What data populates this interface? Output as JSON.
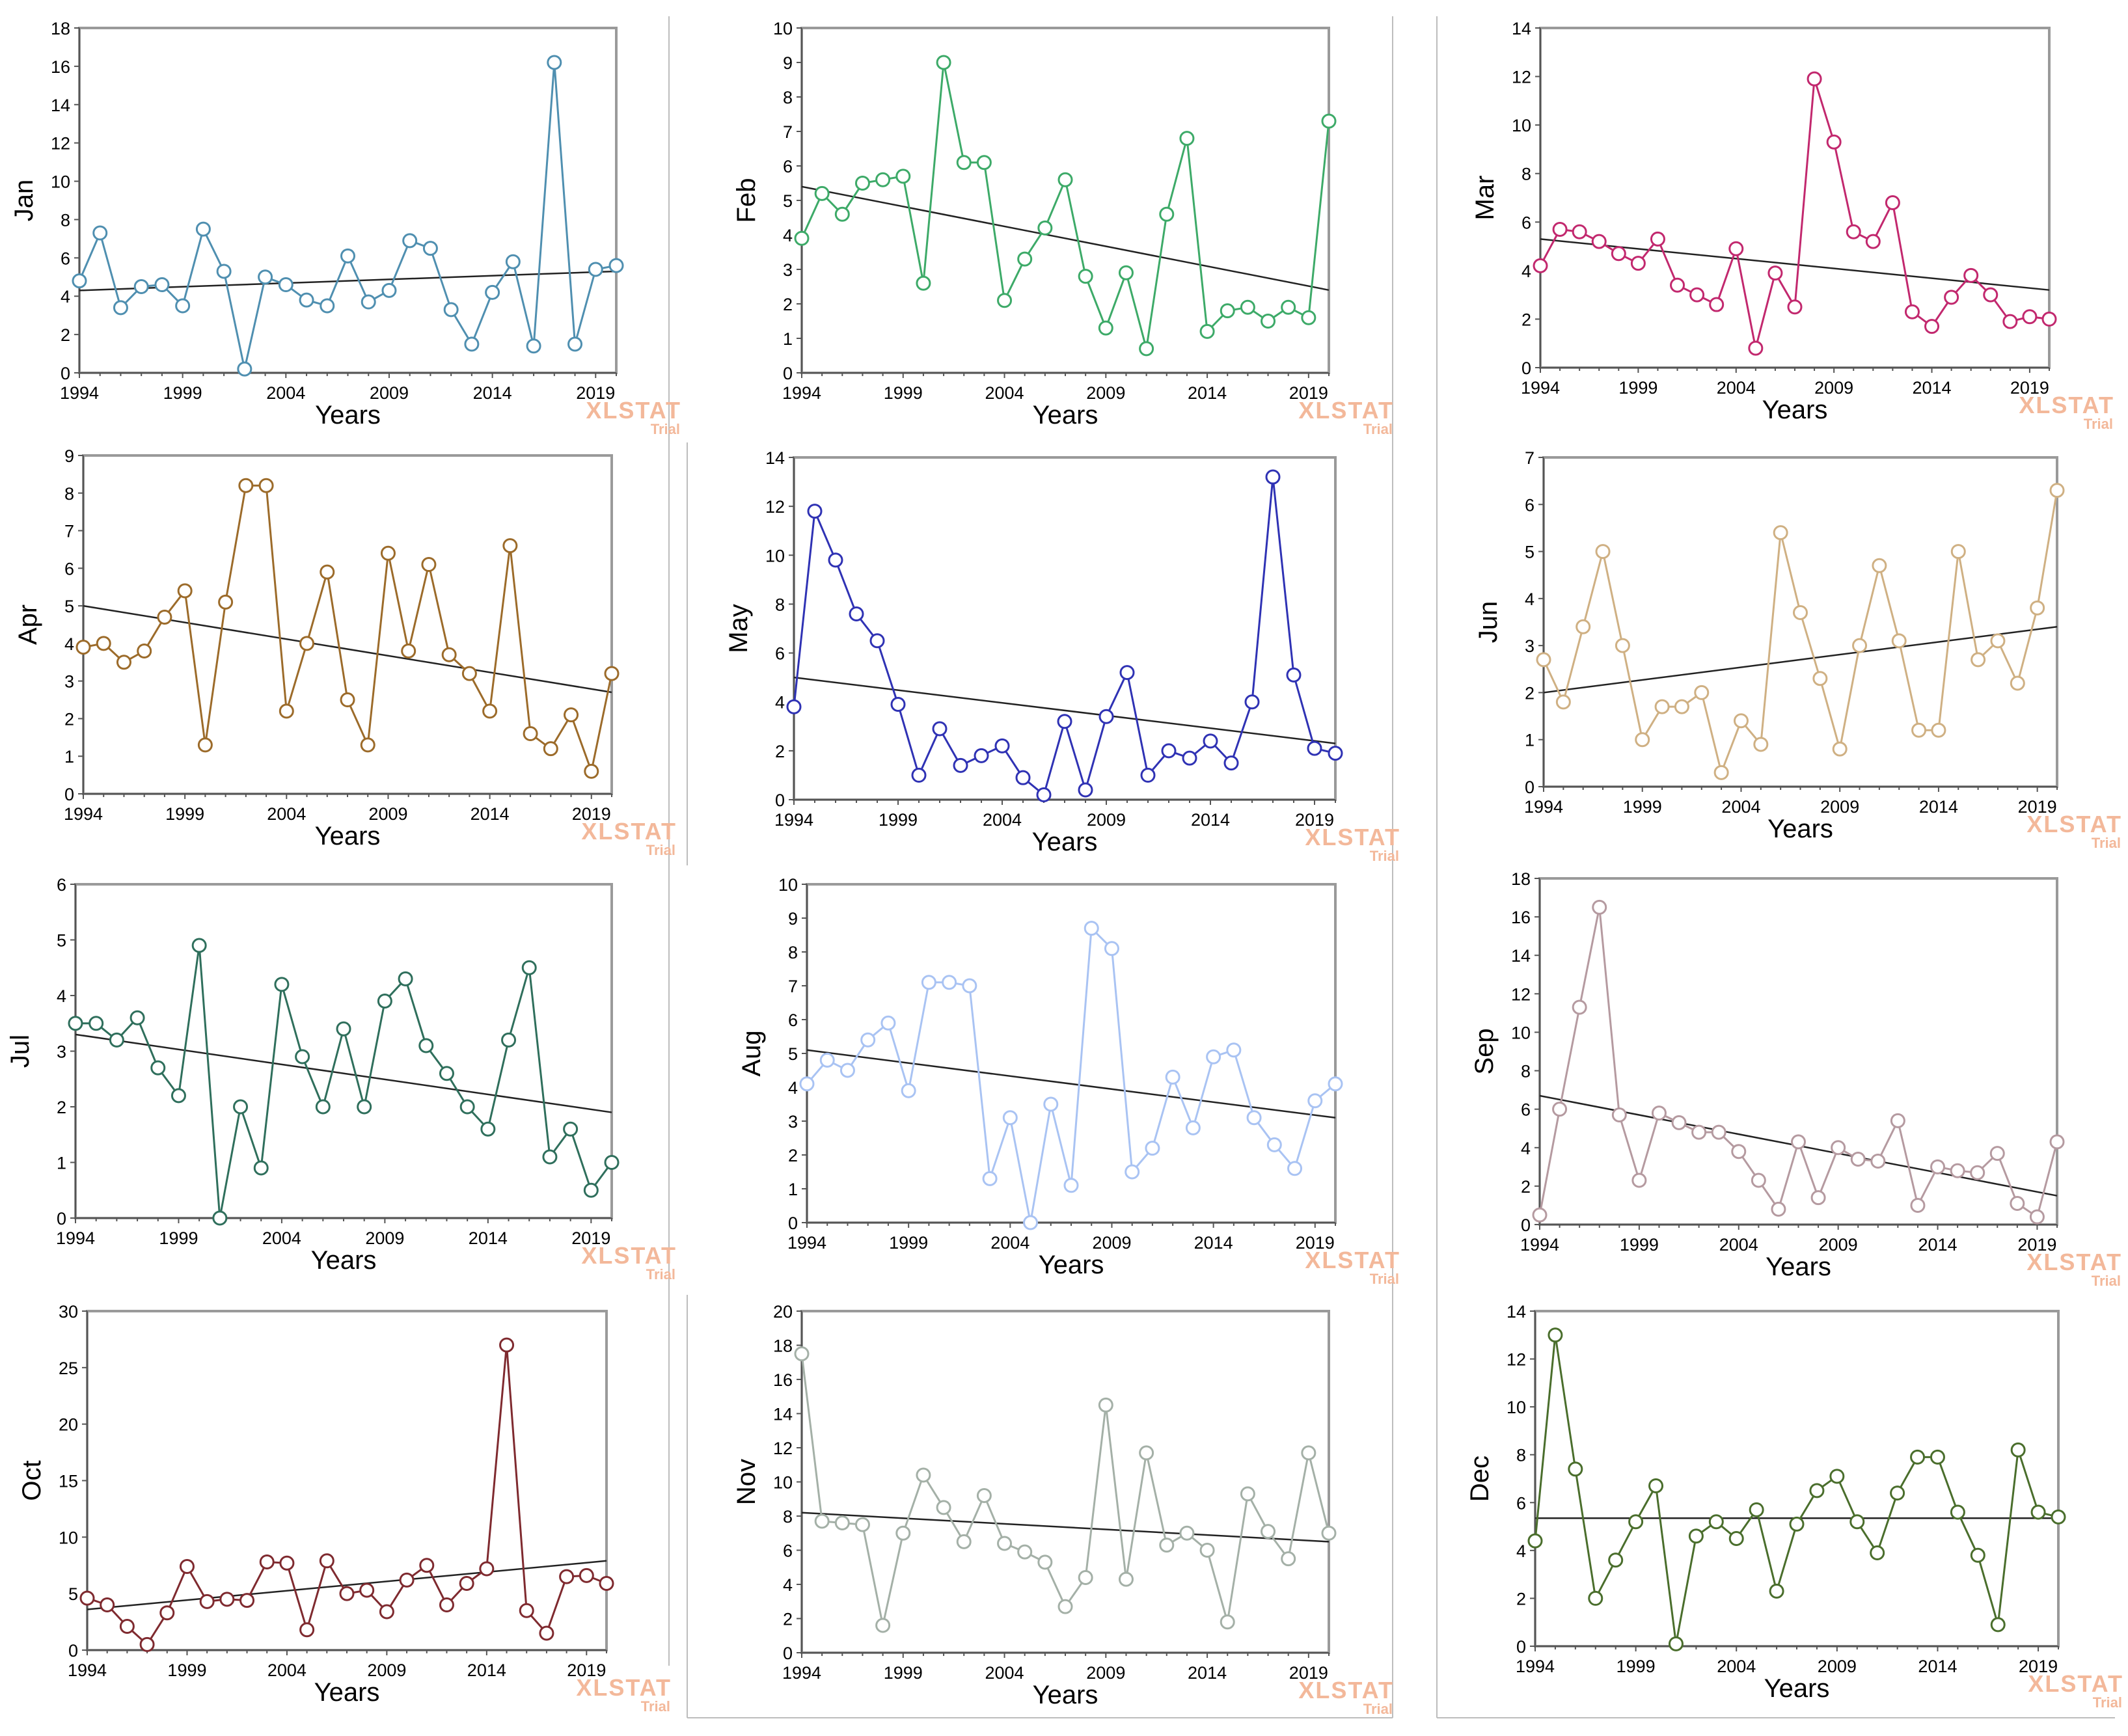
{
  "watermark": {
    "brand": "XLSTAT",
    "edition": "Trial"
  },
  "chart_data": [
    {
      "type": "line",
      "ylabel": "Jan",
      "xlabel": "Years",
      "ylim": [
        0,
        18
      ],
      "ystep": 2,
      "x_ticks": [
        "1994",
        "1999",
        "2004",
        "2009",
        "2014",
        "2019"
      ],
      "color": "#4f8fb0",
      "years": [
        1994,
        1995,
        1996,
        1997,
        1998,
        1999,
        2000,
        2001,
        2002,
        2003,
        2004,
        2005,
        2006,
        2007,
        2008,
        2009,
        2010,
        2011,
        2012,
        2013,
        2014,
        2015,
        2016,
        2017,
        2018,
        2019,
        2020
      ],
      "values": [
        4.8,
        7.3,
        3.4,
        4.5,
        4.6,
        3.5,
        7.5,
        5.3,
        0.2,
        5.0,
        4.6,
        3.8,
        3.5,
        6.1,
        3.7,
        4.3,
        6.9,
        6.5,
        3.3,
        1.5,
        4.2,
        5.8,
        1.4,
        16.2,
        1.5,
        5.4,
        5.6
      ],
      "trend": [
        4.3,
        5.3
      ]
    },
    {
      "type": "line",
      "ylabel": "Feb",
      "xlabel": "Years",
      "ylim": [
        0,
        10
      ],
      "ystep": 1,
      "x_ticks": [
        "1994",
        "1999",
        "2004",
        "2009",
        "2014",
        "2019"
      ],
      "color": "#3daa68",
      "years": [
        1994,
        1995,
        1996,
        1997,
        1998,
        1999,
        2000,
        2001,
        2002,
        2003,
        2004,
        2005,
        2006,
        2007,
        2008,
        2009,
        2010,
        2011,
        2012,
        2013,
        2014,
        2015,
        2016,
        2017,
        2018,
        2019,
        2020
      ],
      "values": [
        3.9,
        5.2,
        4.6,
        5.5,
        5.6,
        5.7,
        2.6,
        9.0,
        6.1,
        6.1,
        2.1,
        3.3,
        4.2,
        5.6,
        2.8,
        1.3,
        2.9,
        0.7,
        4.6,
        6.8,
        1.2,
        1.8,
        1.9,
        1.5,
        1.9,
        1.6,
        7.3
      ],
      "trend": [
        5.4,
        2.4
      ]
    },
    {
      "type": "line",
      "ylabel": "Mar",
      "xlabel": "Years",
      "ylim": [
        0,
        14
      ],
      "ystep": 2,
      "x_ticks": [
        "1994",
        "1999",
        "2004",
        "2009",
        "2014",
        "2019"
      ],
      "color": "#c2286e",
      "years": [
        1994,
        1995,
        1996,
        1997,
        1998,
        1999,
        2000,
        2001,
        2002,
        2003,
        2004,
        2005,
        2006,
        2007,
        2008,
        2009,
        2010,
        2011,
        2012,
        2013,
        2014,
        2015,
        2016,
        2017,
        2018,
        2019,
        2020
      ],
      "values": [
        4.2,
        5.7,
        5.6,
        5.2,
        4.7,
        4.3,
        5.3,
        3.4,
        3.0,
        2.6,
        4.9,
        0.8,
        3.9,
        2.5,
        11.9,
        9.3,
        5.6,
        5.2,
        6.8,
        2.3,
        1.7,
        2.9,
        3.8,
        3.0,
        1.9,
        2.1,
        2.0
      ],
      "trend": [
        5.3,
        3.2
      ]
    },
    {
      "type": "line",
      "ylabel": "Apr",
      "xlabel": "Years",
      "ylim": [
        0,
        9
      ],
      "ystep": 1,
      "x_ticks": [
        "1994",
        "1999",
        "2004",
        "2009",
        "2014",
        "2019"
      ],
      "color": "#9c6b2a",
      "years": [
        1994,
        1995,
        1996,
        1997,
        1998,
        1999,
        2000,
        2001,
        2002,
        2003,
        2004,
        2005,
        2006,
        2007,
        2008,
        2009,
        2010,
        2011,
        2012,
        2013,
        2014,
        2015,
        2016,
        2017,
        2018,
        2019,
        2020
      ],
      "values": [
        3.9,
        4.0,
        3.5,
        3.8,
        4.7,
        5.4,
        1.3,
        5.1,
        8.2,
        8.2,
        2.2,
        4.0,
        5.9,
        2.5,
        1.3,
        6.4,
        3.8,
        6.1,
        3.7,
        3.2,
        2.2,
        6.6,
        1.6,
        1.2,
        2.1,
        0.6,
        3.2
      ],
      "trend": [
        5.0,
        2.7
      ]
    },
    {
      "type": "line",
      "ylabel": "May",
      "xlabel": "Years",
      "ylim": [
        0,
        14
      ],
      "ystep": 2,
      "x_ticks": [
        "1994",
        "1999",
        "2004",
        "2009",
        "2014",
        "2019"
      ],
      "color": "#2f32b4",
      "years": [
        1994,
        1995,
        1996,
        1997,
        1998,
        1999,
        2000,
        2001,
        2002,
        2003,
        2004,
        2005,
        2006,
        2007,
        2008,
        2009,
        2010,
        2011,
        2012,
        2013,
        2014,
        2015,
        2016,
        2017,
        2018,
        2019,
        2020
      ],
      "values": [
        3.8,
        11.8,
        9.8,
        7.6,
        6.5,
        3.9,
        1.0,
        2.9,
        1.4,
        1.8,
        2.2,
        0.9,
        0.2,
        3.2,
        0.4,
        3.4,
        5.2,
        1.0,
        2.0,
        1.7,
        2.4,
        1.5,
        4.0,
        13.2,
        5.1,
        2.1,
        1.9
      ],
      "trend": [
        5.0,
        2.3
      ]
    },
    {
      "type": "line",
      "ylabel": "Jun",
      "xlabel": "Years",
      "ylim": [
        0,
        7
      ],
      "ystep": 1,
      "x_ticks": [
        "1994",
        "1999",
        "2004",
        "2009",
        "2014",
        "2019"
      ],
      "color": "#cfb083",
      "years": [
        1994,
        1995,
        1996,
        1997,
        1998,
        1999,
        2000,
        2001,
        2002,
        2003,
        2004,
        2005,
        2006,
        2007,
        2008,
        2009,
        2010,
        2011,
        2012,
        2013,
        2014,
        2015,
        2016,
        2017,
        2018,
        2019,
        2020
      ],
      "values": [
        2.7,
        1.8,
        3.4,
        5.0,
        3.0,
        1.0,
        1.7,
        1.7,
        2.0,
        0.3,
        1.4,
        0.9,
        5.4,
        3.7,
        2.3,
        0.8,
        3.0,
        4.7,
        3.1,
        1.2,
        1.2,
        5.0,
        2.7,
        3.1,
        2.2,
        3.8,
        6.3
      ],
      "trend": [
        2.0,
        3.4
      ]
    },
    {
      "type": "line",
      "ylabel": "Jul",
      "xlabel": "Years",
      "ylim": [
        0,
        6
      ],
      "ystep": 1,
      "x_ticks": [
        "1994",
        "1999",
        "2004",
        "2009",
        "2014",
        "2019"
      ],
      "color": "#2f6f5c",
      "years": [
        1994,
        1995,
        1996,
        1997,
        1998,
        1999,
        2000,
        2001,
        2002,
        2003,
        2004,
        2005,
        2006,
        2007,
        2008,
        2009,
        2010,
        2011,
        2012,
        2013,
        2014,
        2015,
        2016,
        2017,
        2018,
        2019,
        2020
      ],
      "values": [
        3.5,
        3.5,
        3.2,
        3.6,
        2.7,
        2.2,
        4.9,
        0.0,
        2.0,
        0.9,
        4.2,
        2.9,
        2.0,
        3.4,
        2.0,
        3.9,
        4.3,
        3.1,
        2.6,
        2.0,
        1.6,
        3.2,
        4.5,
        1.1,
        1.6,
        0.5,
        1.0
      ],
      "trend": [
        3.3,
        1.9
      ]
    },
    {
      "type": "line",
      "ylabel": "Aug",
      "xlabel": "Years",
      "ylim": [
        0,
        10
      ],
      "ystep": 1,
      "x_ticks": [
        "1994",
        "1999",
        "2004",
        "2009",
        "2014",
        "2019"
      ],
      "color": "#a9c3f3",
      "years": [
        1994,
        1995,
        1996,
        1997,
        1998,
        1999,
        2000,
        2001,
        2002,
        2003,
        2004,
        2005,
        2006,
        2007,
        2008,
        2009,
        2010,
        2011,
        2012,
        2013,
        2014,
        2015,
        2016,
        2017,
        2018,
        2019,
        2020
      ],
      "values": [
        4.1,
        4.8,
        4.5,
        5.4,
        5.9,
        3.9,
        7.1,
        7.1,
        7.0,
        1.3,
        3.1,
        0.0,
        3.5,
        1.1,
        8.7,
        8.1,
        1.5,
        2.2,
        4.3,
        2.8,
        4.9,
        5.1,
        3.1,
        2.3,
        1.6,
        3.6,
        4.1
      ],
      "trend": [
        5.1,
        3.1
      ]
    },
    {
      "type": "line",
      "ylabel": "Sep",
      "xlabel": "Years",
      "ylim": [
        0,
        18
      ],
      "ystep": 2,
      "x_ticks": [
        "1994",
        "1999",
        "2004",
        "2009",
        "2014",
        "2019"
      ],
      "color": "#b59aa0",
      "years": [
        1994,
        1995,
        1996,
        1997,
        1998,
        1999,
        2000,
        2001,
        2002,
        2003,
        2004,
        2005,
        2006,
        2007,
        2008,
        2009,
        2010,
        2011,
        2012,
        2013,
        2014,
        2015,
        2016,
        2017,
        2018,
        2019,
        2020
      ],
      "values": [
        0.5,
        6.0,
        11.3,
        16.5,
        5.7,
        2.3,
        5.8,
        5.3,
        4.8,
        4.8,
        3.8,
        2.3,
        0.8,
        4.3,
        1.4,
        4.0,
        3.4,
        3.3,
        5.4,
        1.0,
        3.0,
        2.8,
        2.7,
        3.7,
        1.1,
        0.4,
        4.3
      ],
      "trend": [
        6.7,
        1.5
      ]
    },
    {
      "type": "line",
      "ylabel": "Oct",
      "xlabel": "Years",
      "ylim": [
        0,
        30
      ],
      "ystep": 5,
      "x_ticks": [
        "1994",
        "1999",
        "2004",
        "2009",
        "2014",
        "2019"
      ],
      "color": "#7f2a2f",
      "years": [
        1994,
        1995,
        1996,
        1997,
        1998,
        1999,
        2000,
        2001,
        2002,
        2003,
        2004,
        2005,
        2006,
        2007,
        2008,
        2009,
        2010,
        2011,
        2012,
        2013,
        2014,
        2015,
        2016,
        2017,
        2018,
        2019,
        2020
      ],
      "values": [
        4.6,
        4.0,
        2.1,
        0.5,
        3.3,
        7.4,
        4.3,
        4.5,
        4.4,
        7.8,
        7.7,
        1.8,
        7.9,
        5.0,
        5.3,
        3.4,
        6.2,
        7.5,
        4.0,
        5.9,
        7.2,
        27.0,
        3.5,
        1.5,
        6.5,
        6.6,
        5.9
      ],
      "trend": [
        3.6,
        7.9
      ]
    },
    {
      "type": "line",
      "ylabel": "Nov",
      "xlabel": "Years",
      "ylim": [
        0,
        20
      ],
      "ystep": 2,
      "x_ticks": [
        "1994",
        "1999",
        "2004",
        "2009",
        "2014",
        "2019"
      ],
      "color": "#a4b0a7",
      "years": [
        1994,
        1995,
        1996,
        1997,
        1998,
        1999,
        2000,
        2001,
        2002,
        2003,
        2004,
        2005,
        2006,
        2007,
        2008,
        2009,
        2010,
        2011,
        2012,
        2013,
        2014,
        2015,
        2016,
        2017,
        2018,
        2019,
        2020
      ],
      "values": [
        17.5,
        7.7,
        7.6,
        7.5,
        1.6,
        7.0,
        10.4,
        8.5,
        6.5,
        9.2,
        6.4,
        5.9,
        5.3,
        2.7,
        4.4,
        14.5,
        4.3,
        11.7,
        6.3,
        7.0,
        6.0,
        1.8,
        9.3,
        7.1,
        5.5,
        11.7,
        7.0
      ],
      "trend": [
        8.2,
        6.5
      ]
    },
    {
      "type": "line",
      "ylabel": "Dec",
      "xlabel": "Years",
      "ylim": [
        0,
        14
      ],
      "ystep": 2,
      "x_ticks": [
        "1994",
        "1999",
        "2004",
        "2009",
        "2014",
        "2019"
      ],
      "color": "#4a6e2c",
      "years": [
        1994,
        1995,
        1996,
        1997,
        1998,
        1999,
        2000,
        2001,
        2002,
        2003,
        2004,
        2005,
        2006,
        2007,
        2008,
        2009,
        2010,
        2011,
        2012,
        2013,
        2014,
        2015,
        2016,
        2017,
        2018,
        2019,
        2020
      ],
      "values": [
        4.4,
        13.0,
        7.4,
        2.0,
        3.6,
        5.2,
        6.7,
        0.1,
        4.6,
        5.2,
        4.5,
        5.7,
        2.3,
        5.1,
        6.5,
        7.1,
        5.2,
        3.9,
        6.4,
        7.9,
        7.9,
        5.6,
        3.8,
        0.9,
        8.2,
        5.6,
        5.4
      ],
      "trend": [
        5.35,
        5.35
      ]
    }
  ]
}
